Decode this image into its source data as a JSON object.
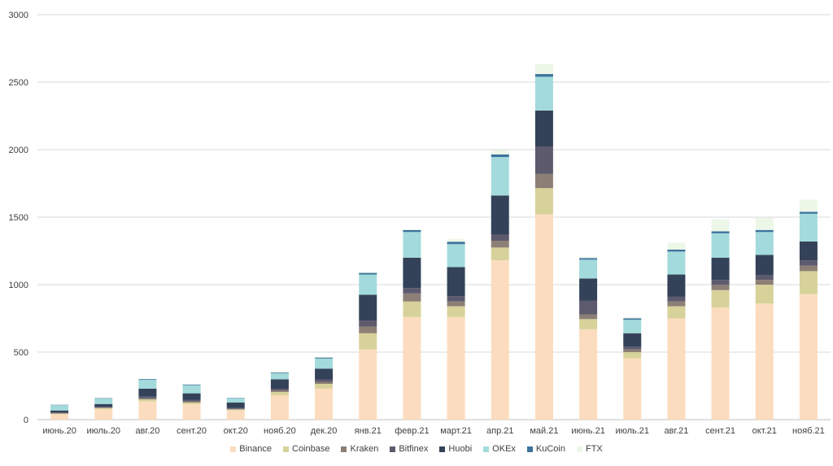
{
  "chart_data": {
    "type": "bar",
    "stacked": true,
    "title": "",
    "xlabel": "",
    "ylabel": "",
    "ylim": [
      0,
      3000
    ],
    "yticks": [
      0,
      500,
      1000,
      1500,
      2000,
      2500,
      3000
    ],
    "grid": true,
    "legend_position": "bottom",
    "categories": [
      "июнь.20",
      "июль.20",
      "авг.20",
      "сент.20",
      "окт.20",
      "нояб.20",
      "дек.20",
      "янв.21",
      "февр.21",
      "март.21",
      "апр.21",
      "май.21",
      "июнь.21",
      "июль.21",
      "авг.21",
      "сент.21",
      "окт.21",
      "нояб.21"
    ],
    "series": [
      {
        "name": "Binance",
        "color": "#FCDCBE",
        "values": [
          40,
          78,
          135,
          115,
          68,
          180,
          230,
          520,
          760,
          760,
          1180,
          1520,
          670,
          455,
          750,
          830,
          860,
          930
        ]
      },
      {
        "name": "Coinbase",
        "color": "#D6D29A",
        "values": [
          5,
          8,
          15,
          12,
          8,
          25,
          35,
          120,
          115,
          80,
          95,
          195,
          75,
          45,
          90,
          130,
          140,
          170
        ]
      },
      {
        "name": "Kraken",
        "color": "#8C7F76",
        "values": [
          3,
          4,
          8,
          8,
          5,
          12,
          15,
          50,
          60,
          35,
          50,
          105,
          35,
          20,
          35,
          40,
          35,
          40
        ]
      },
      {
        "name": "Bitfinex",
        "color": "#5E5A6E",
        "values": [
          5,
          6,
          12,
          10,
          6,
          12,
          18,
          45,
          40,
          40,
          45,
          200,
          100,
          20,
          35,
          35,
          35,
          40
        ]
      },
      {
        "name": "Huobi",
        "color": "#344259",
        "values": [
          15,
          20,
          60,
          50,
          40,
          70,
          80,
          190,
          225,
          215,
          290,
          270,
          165,
          100,
          165,
          165,
          150,
          140
        ]
      },
      {
        "name": "OKEx",
        "color": "#A3DADB",
        "values": [
          40,
          40,
          65,
          60,
          30,
          45,
          75,
          150,
          190,
          170,
          285,
          250,
          140,
          100,
          170,
          180,
          170,
          205
        ]
      },
      {
        "name": "KuCoin",
        "color": "#3E739D",
        "values": [
          2,
          3,
          5,
          5,
          3,
          5,
          7,
          12,
          15,
          18,
          20,
          20,
          12,
          10,
          15,
          15,
          15,
          15
        ]
      },
      {
        "name": "FTX",
        "color": "#ECF7E8",
        "values": [
          0,
          0,
          0,
          0,
          0,
          10,
          5,
          5,
          5,
          20,
          30,
          75,
          10,
          10,
          50,
          90,
          90,
          90
        ]
      }
    ]
  }
}
